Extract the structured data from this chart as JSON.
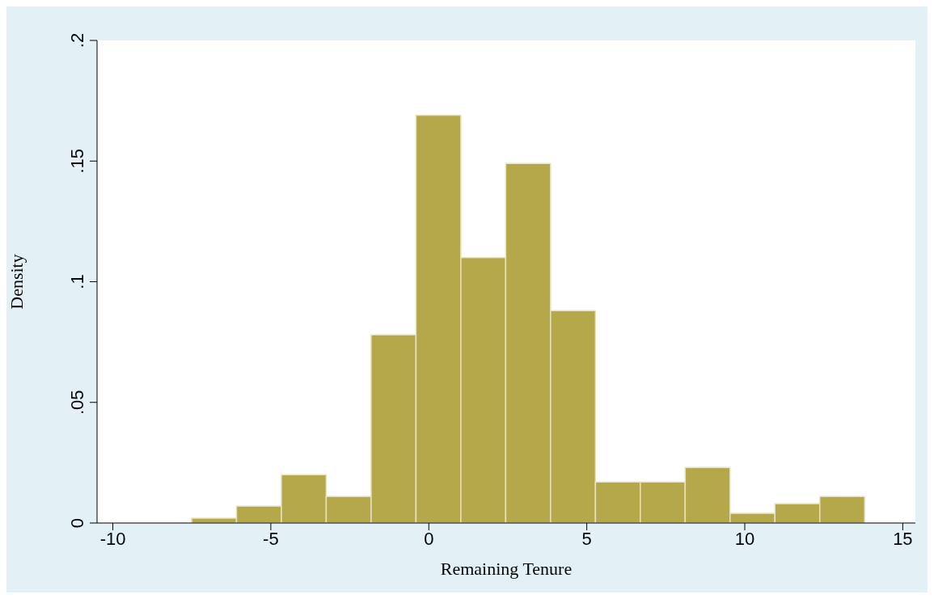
{
  "chart_data": {
    "type": "histogram",
    "xlabel": "Remaining Tenure",
    "ylabel": "Density",
    "bins": [
      -7.5,
      -6.08,
      -4.66,
      -3.24,
      -1.82,
      -0.4,
      1.02,
      2.44,
      3.86,
      5.28,
      6.7,
      8.12,
      9.54,
      10.96,
      12.38,
      13.8
    ],
    "values": [
      0.002,
      0.007,
      0.02,
      0.011,
      0.078,
      0.169,
      0.11,
      0.149,
      0.088,
      0.017,
      0.017,
      0.023,
      0.004,
      0.008,
      0.011
    ],
    "color": "#b5a84a",
    "xlim": [
      -10.5,
      15.4
    ],
    "xticks": [
      -10,
      -5,
      0,
      5,
      10,
      15
    ],
    "ylim": [
      0,
      0.2
    ],
    "yticks": [
      {
        "value": 0,
        "label": "0"
      },
      {
        "value": 0.05,
        "label": ".05"
      },
      {
        "value": 0.1,
        "label": ".1"
      },
      {
        "value": 0.15,
        "label": ".15"
      },
      {
        "value": 0.2,
        "label": ".2"
      }
    ],
    "grid": false
  }
}
